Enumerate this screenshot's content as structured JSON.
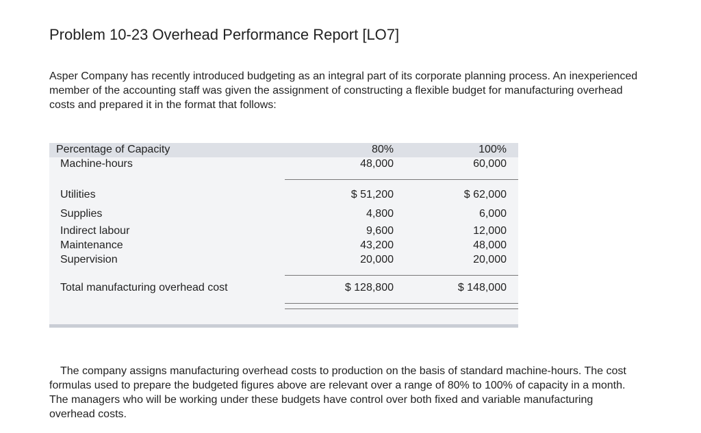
{
  "header": {
    "title": "Problem 10-23 Overhead Performance Report [LO7]"
  },
  "intro": "Asper Company has recently introduced budgeting as an integral part of its corporate planning process. An inexperienced member of the accounting staff was given the assignment of constructing a flexible budget for manufacturing overhead costs and prepared it in the format that follows:",
  "table": {
    "header_rows": [
      [
        "Percentage of Capacity",
        "80%",
        "100%"
      ],
      [
        "Machine-hours",
        "48,000",
        "60,000"
      ]
    ],
    "rows": [
      [
        "Utilities",
        "$ 51,200",
        "$ 62,000"
      ],
      [
        "Supplies",
        "4,800",
        "6,000"
      ],
      [
        "Indirect labour",
        "9,600",
        "12,000"
      ],
      [
        "Maintenance",
        "43,200",
        "48,000"
      ],
      [
        "Supervision",
        "20,000",
        "20,000"
      ]
    ],
    "total": [
      "Total manufacturing overhead cost",
      "$ 128,800",
      "$ 148,000"
    ]
  },
  "outro": "The company assigns manufacturing overhead costs to production on the basis of standard machine-hours. The cost formulas used to prepare the budgeted figures above are relevant over a range of 80% to 100% of capacity in a month. The managers who will be working under these budgets have control over both fixed and variable manufacturing overhead costs."
}
